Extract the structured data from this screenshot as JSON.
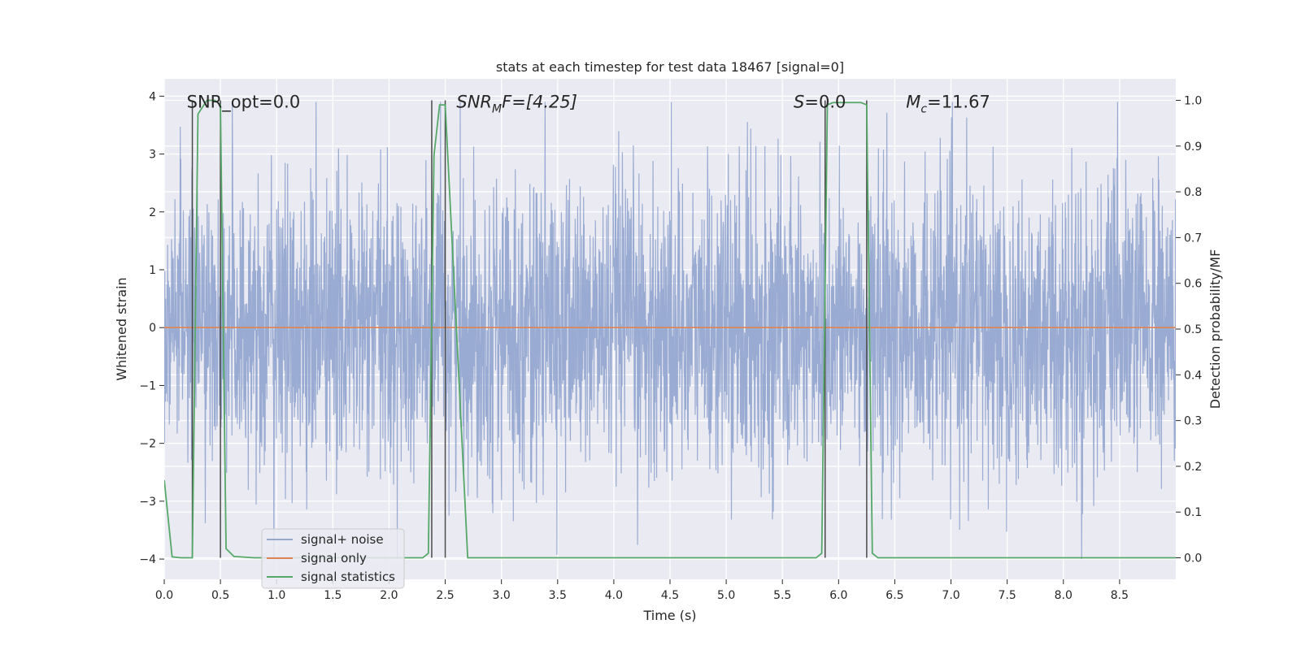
{
  "chart_data": {
    "type": "line",
    "title": "stats at each timestep for test data 18467 [signal=0]",
    "xlabel": "Time (s)",
    "ylabel": "Whitened strain",
    "y2label": "Detection probability/MF",
    "xlim": [
      0.0,
      9.0
    ],
    "ylim": [
      -4.35,
      4.3
    ],
    "y2lim": [
      -0.047,
      1.047
    ],
    "xticks": [
      0.0,
      0.5,
      1.0,
      1.5,
      2.0,
      2.5,
      3.0,
      3.5,
      4.0,
      4.5,
      5.0,
      5.5,
      6.0,
      6.5,
      7.0,
      7.5,
      8.0,
      8.5
    ],
    "xtick_labels": [
      "0.0",
      "0.5",
      "1.0",
      "1.5",
      "2.0",
      "2.5",
      "3.0",
      "3.5",
      "4.0",
      "4.5",
      "5.0",
      "5.5",
      "6.0",
      "6.5",
      "7.0",
      "7.5",
      "8.0",
      "8.5"
    ],
    "yticks": [
      4,
      3,
      2,
      1,
      0,
      -1,
      -2,
      -3,
      -4
    ],
    "ytick_labels": [
      "4",
      "3",
      "2",
      "1",
      "0",
      "−1",
      "−2",
      "−3",
      "−4"
    ],
    "y2ticks": [
      1.0,
      0.9,
      0.8,
      0.7,
      0.6,
      0.5,
      0.4,
      0.3,
      0.2,
      0.1,
      0.0
    ],
    "y2tick_labels": [
      "1.0",
      "0.9",
      "0.8",
      "0.7",
      "0.6",
      "0.5",
      "0.4",
      "0.3",
      "0.2",
      "0.1",
      "0.0"
    ],
    "grid": true,
    "legend_position": "bottom-left",
    "legend": [
      "signal+ noise",
      "signal only",
      "signal statistics"
    ],
    "annotations": {
      "snr_opt": "SNR_opt=0.0",
      "snr_mf_main": "SNR",
      "snr_mf_sub": "M",
      "snr_mf_rest": "F=[4.25]",
      "s_main": "S",
      "s_rest": "=0.0",
      "mc_main": "M",
      "mc_sub": "c",
      "mc_rest": "=11.67"
    },
    "colors": {
      "noise": "#95a8d0",
      "signal": "#dd8452",
      "stats": "#55a868",
      "vlines": "#4a4a4a",
      "plot_bg": "#eaeaf2",
      "grid": "#ffffff"
    },
    "series": [
      {
        "name": "signal+ noise",
        "note": "dense whitened noise trace, amplitude roughly within -4 to 4, typical |x| around 1.5",
        "amplitude_envelope": [
          -4.0,
          3.9
        ]
      },
      {
        "name": "signal only",
        "x": [
          0.0,
          9.0
        ],
        "y": [
          0.0,
          0.0
        ]
      },
      {
        "name": "signal statistics",
        "x": [
          0.0,
          0.07,
          0.15,
          0.25,
          0.3,
          0.38,
          0.45,
          0.5,
          0.55,
          0.62,
          0.8,
          2.3,
          2.35,
          2.4,
          2.45,
          2.5,
          2.6,
          2.7,
          5.8,
          5.85,
          5.9,
          5.95,
          6.0,
          6.2,
          6.25,
          6.3,
          6.35,
          9.0
        ],
        "y": [
          0.17,
          0.002,
          0.0,
          0.0,
          0.97,
          1.0,
          1.0,
          0.99,
          0.02,
          0.003,
          0.0,
          0.0,
          0.01,
          0.88,
          0.99,
          0.99,
          0.5,
          0.0,
          0.0,
          0.01,
          0.99,
          0.995,
          0.995,
          0.995,
          0.99,
          0.01,
          0.0,
          0.0
        ]
      }
    ],
    "vertical_lines": [
      {
        "x": 0.25,
        "y2_range": [
          0.0,
          1.0
        ]
      },
      {
        "x": 0.5,
        "y2_range": [
          0.0,
          1.0
        ]
      },
      {
        "x": 2.38,
        "y2_range": [
          0.0,
          1.0
        ]
      },
      {
        "x": 2.5,
        "y2_range": [
          0.0,
          1.0
        ]
      },
      {
        "x": 5.88,
        "y2_range": [
          0.0,
          1.0
        ]
      },
      {
        "x": 6.25,
        "y2_range": [
          0.0,
          1.0
        ]
      }
    ]
  }
}
